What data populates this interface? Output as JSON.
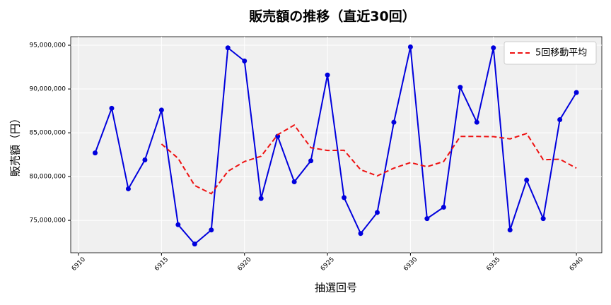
{
  "chart_data": {
    "type": "line",
    "title": "販売額の推移（直近30回）",
    "x_label": "抽選回号",
    "y_label": "販売額（円）",
    "x": [
      6911,
      6912,
      6913,
      6914,
      6915,
      6916,
      6917,
      6918,
      6919,
      6920,
      6921,
      6922,
      6923,
      6924,
      6925,
      6926,
      6927,
      6928,
      6929,
      6930,
      6931,
      6932,
      6933,
      6934,
      6935,
      6936,
      6937,
      6938,
      6939,
      6940
    ],
    "series": [
      {
        "color": "#0000dd",
        "marker": true,
        "dashed": false,
        "values": [
          82700000,
          87800000,
          78600000,
          81900000,
          87600000,
          74500000,
          72300000,
          73900000,
          94700000,
          93200000,
          77500000,
          84600000,
          79400000,
          81800000,
          91600000,
          77600000,
          73500000,
          75900000,
          86200000,
          94800000,
          75200000,
          76500000,
          90200000,
          86200000,
          94700000,
          73900000,
          79600000,
          75200000,
          86500000,
          89600000
        ]
      },
      {
        "name": "5回移動平均",
        "color": "#ee1111",
        "marker": false,
        "dashed": true,
        "values": [
          null,
          null,
          null,
          null,
          83720000,
          82080000,
          78980000,
          78040000,
          80600000,
          81720000,
          82320000,
          84780000,
          85880000,
          83300000,
          82980000,
          83000000,
          80780000,
          80080000,
          80960000,
          81600000,
          81120000,
          81720000,
          84580000,
          84580000,
          84560000,
          84300000,
          84920000,
          81920000,
          81980000,
          80960000
        ]
      }
    ],
    "xlim": [
      6909.53,
      6941.53
    ],
    "xticks": [
      6910,
      6915,
      6920,
      6925,
      6930,
      6935,
      6940
    ],
    "ylim": [
      71300000,
      95970000
    ],
    "yticks": [
      {
        "value": 75000000,
        "label": "75,000,000"
      },
      {
        "value": 80000000,
        "label": "80,000,000"
      },
      {
        "value": 85000000,
        "label": "85,000,000"
      },
      {
        "value": 90000000,
        "label": "90,000,000"
      },
      {
        "value": 95000000,
        "label": "95,000,000"
      }
    ],
    "grid": true,
    "legend": "upper right"
  }
}
